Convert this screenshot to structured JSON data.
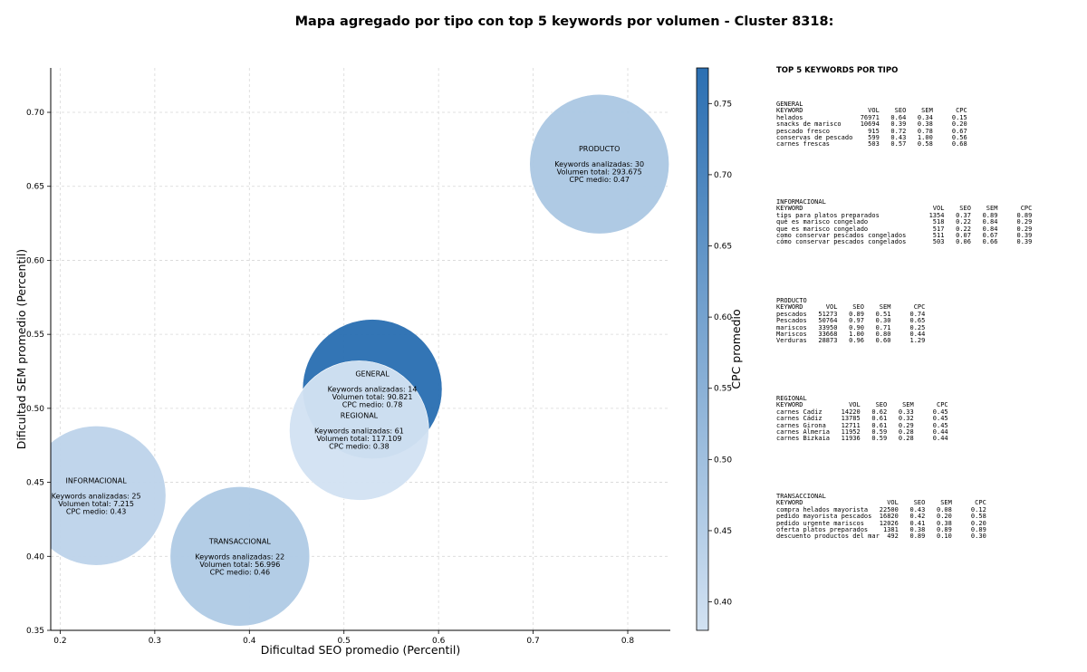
{
  "title": "Mapa agregado por tipo con top 5 keywords por volumen - Cluster 8318:",
  "chart_data": {
    "type": "scatter",
    "xlabel": "Dificultad SEO promedio (Percentil)",
    "ylabel": "Dificultad SEM promedio (Percentil)",
    "xlim": [
      0.19,
      0.845
    ],
    "ylim": [
      0.35,
      0.73
    ],
    "xticks": [
      "0.2",
      "0.3",
      "0.4",
      "0.5",
      "0.6",
      "0.7",
      "0.8"
    ],
    "yticks": [
      "0.35",
      "0.40",
      "0.45",
      "0.50",
      "0.55",
      "0.60",
      "0.65",
      "0.70"
    ],
    "grid": true,
    "colorbar": {
      "label": "CPC promedio",
      "range": [
        0.38,
        0.775
      ],
      "ticks": [
        "0.40",
        "0.45",
        "0.50",
        "0.55",
        "0.60",
        "0.65",
        "0.70",
        "0.75"
      ],
      "color_low": "#d2e2f2",
      "color_high": "#2b6fb2"
    },
    "points": [
      {
        "name": "GENERAL",
        "x": 0.53,
        "y": 0.513,
        "cpc": 0.78,
        "keywords": "Keywords analizadas: 14",
        "volume": "Volumen total: 90.821",
        "cpc_text": "CPC medio: 0.78"
      },
      {
        "name": "PRODUCTO",
        "x": 0.77,
        "y": 0.665,
        "cpc": 0.47,
        "keywords": "Keywords analizadas: 30",
        "volume": "Volumen total: 293.675",
        "cpc_text": "CPC medio: 0.47"
      },
      {
        "name": "REGIONAL",
        "x": 0.516,
        "y": 0.485,
        "cpc": 0.38,
        "keywords": "Keywords analizadas: 61",
        "volume": "Volumen total: 117.109",
        "cpc_text": "CPC medio: 0.38"
      },
      {
        "name": "INFORMACIONAL",
        "x": 0.238,
        "y": 0.441,
        "cpc": 0.43,
        "keywords": "Keywords analizadas: 25",
        "volume": "Volumen total: 7.215",
        "cpc_text": "CPC medio: 0.43"
      },
      {
        "name": "TRANSACCIONAL",
        "x": 0.39,
        "y": 0.4,
        "cpc": 0.46,
        "keywords": "Keywords analizadas: 22",
        "volume": "Volumen total: 56.996",
        "cpc_text": "CPC medio: 0.46"
      }
    ]
  },
  "side_panel": {
    "title": "TOP 5 KEYWORDS POR TIPO",
    "blocks": [
      {
        "name": "GENERAL",
        "lines": [
          "GENERAL",
          "KEYWORD                 VOL    SEO    SEM      CPC",
          "helados               76971   0.64   0.34     0.15",
          "snacks de marisco     10694   0.39   0.38     0.20",
          "pescado fresco          915   0.72   0.78     0.67",
          "conservas de pescado    599   0.43   1.00     0.56",
          "carnes frescas          503   0.57   0.58     0.68"
        ]
      },
      {
        "name": "INFORMACIONAL",
        "lines": [
          "INFORMACIONAL",
          "KEYWORD                                  VOL    SEO    SEM      CPC",
          "tips para platos preparados             1354   0.37   0.89     0.89",
          "qué es marisco congelado                 518   0.22   0.84     0.29",
          "que es marisco congelado                 517   0.22   0.84     0.29",
          "como conservar pescados congelados       511   0.07   0.67     0.39",
          "cómo conservar pescados congelados       503   0.06   0.66     0.39"
        ]
      },
      {
        "name": "PRODUCTO",
        "lines": [
          "PRODUCTO",
          "KEYWORD      VOL    SEO    SEM      CPC",
          "pescados   51273   0.89   0.51     0.74",
          "Pescados   50764   0.97   0.30     0.65",
          "mariscos   33950   0.90   0.71     0.25",
          "Mariscos   33668   1.00   0.80     0.44",
          "Verduras   28873   0.96   0.60     1.29"
        ]
      },
      {
        "name": "REGIONAL",
        "lines": [
          "REGIONAL",
          "KEYWORD            VOL    SEO    SEM      CPC",
          "carnes Cadiz     14220   0.62   0.33     0.45",
          "carnes Cádiz     13785   0.61   0.32     0.45",
          "carnes Girona    12711   0.61   0.29     0.45",
          "carnes Almeria   11952   0.59   0.28     0.44",
          "carnes Bizkaia   11936   0.59   0.28     0.44"
        ]
      },
      {
        "name": "TRANSACCIONAL",
        "lines": [
          "TRANSACCIONAL",
          "KEYWORD                      VOL    SEO    SEM      CPC",
          "compra helados mayorista   22500   0.43   0.08     0.12",
          "pedido mayorista pescados  16820   0.42   0.20     0.58",
          "pedido urgente mariscos    12026   0.41   0.38     0.20",
          "oferta platos preparados    1381   0.38   0.89     0.89",
          "descuento productos del mar  492   0.89   0.10     0.30"
        ]
      }
    ]
  }
}
